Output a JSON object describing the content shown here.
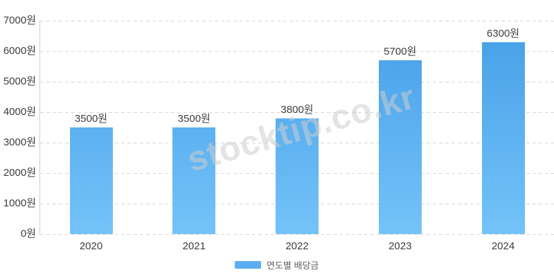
{
  "chart_data": {
    "type": "bar",
    "title": "",
    "categories": [
      "2020",
      "2021",
      "2022",
      "2023",
      "2024"
    ],
    "values": [
      3500,
      3500,
      3800,
      5700,
      6300
    ],
    "value_labels": [
      "3500원",
      "3500원",
      "3800원",
      "5700원",
      "6300원"
    ],
    "series": [
      {
        "name": "연도별 배당금",
        "values": [
          3500,
          3500,
          3800,
          5700,
          6300
        ]
      }
    ],
    "y_ticks": [
      "0원",
      "1000원",
      "2000원",
      "3000원",
      "4000원",
      "5000원",
      "6000원",
      "7000원"
    ],
    "y_tick_values": [
      0,
      1000,
      2000,
      3000,
      4000,
      5000,
      6000,
      7000
    ],
    "ylim": [
      0,
      7000
    ],
    "xlabel": "",
    "ylabel": "",
    "grid": "horizontal-dashed",
    "legend_position": "bottom-center"
  },
  "legend": {
    "label": "연도별 배당금"
  },
  "watermark": {
    "text": "stocktip.co.kr"
  },
  "colors": {
    "bar_gradient_top": "#459ee6",
    "bar_gradient_bottom": "#74c3f9",
    "legend_swatch": "#5cadf2",
    "grid": "#d6d6d6",
    "axis": "#cfcfcf",
    "tick_text": "#3a3d40",
    "legend_text": "#5c6064",
    "watermark_text": "#cdcdcd"
  }
}
